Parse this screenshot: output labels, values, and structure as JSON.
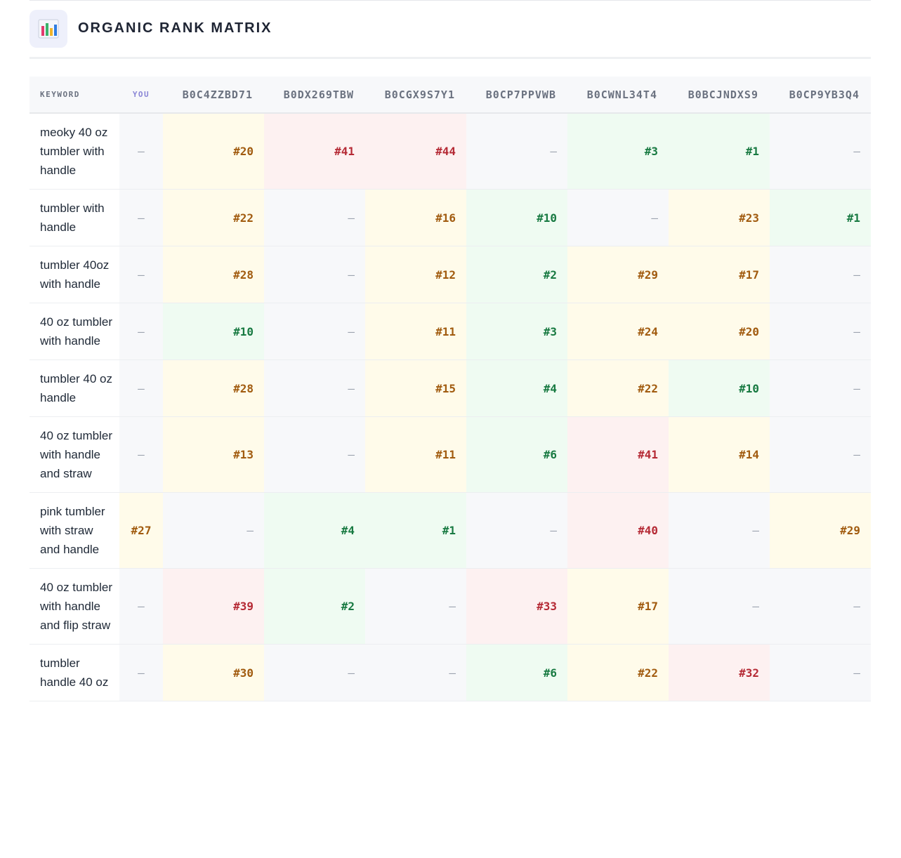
{
  "header": {
    "title": "ORGANIC RANK MATRIX",
    "icon": "bar-chart-icon"
  },
  "table": {
    "columns": {
      "keyword": "KEYWORD",
      "you": "YOU"
    },
    "asins": [
      "B0C4ZZBD71",
      "B0DX269TBW",
      "B0CGX9S7Y1",
      "B0CP7PPVWB",
      "B0CWNL34T4",
      "B0BCJNDXS9",
      "B0CP9YB3Q4"
    ],
    "rows": [
      {
        "keyword": "meoky 40 oz tumbler with handle",
        "you": "–",
        "ranks": [
          "#20",
          "#41",
          "#44",
          "–",
          "#3",
          "#1",
          "–"
        ]
      },
      {
        "keyword": "tumbler with handle",
        "you": "–",
        "ranks": [
          "#22",
          "–",
          "#16",
          "#10",
          "–",
          "#23",
          "#1"
        ]
      },
      {
        "keyword": "tumbler 40oz with handle",
        "you": "–",
        "ranks": [
          "#28",
          "–",
          "#12",
          "#2",
          "#29",
          "#17",
          "–"
        ]
      },
      {
        "keyword": "40 oz tumbler with handle",
        "you": "–",
        "ranks": [
          "#10",
          "–",
          "#11",
          "#3",
          "#24",
          "#20",
          "–"
        ]
      },
      {
        "keyword": "tumbler 40 oz handle",
        "you": "–",
        "ranks": [
          "#28",
          "–",
          "#15",
          "#4",
          "#22",
          "#10",
          "–"
        ]
      },
      {
        "keyword": "40 oz tumbler with handle and straw",
        "you": "–",
        "ranks": [
          "#13",
          "–",
          "#11",
          "#6",
          "#41",
          "#14",
          "–"
        ]
      },
      {
        "keyword": "pink tumbler with straw and handle",
        "you": "#27",
        "ranks": [
          "–",
          "#4",
          "#1",
          "–",
          "#40",
          "–",
          "#29"
        ]
      },
      {
        "keyword": "40 oz tumbler with handle and flip straw",
        "you": "–",
        "ranks": [
          "#39",
          "#2",
          "–",
          "#33",
          "#17",
          "–",
          "–"
        ]
      },
      {
        "keyword": "tumbler handle 40 oz",
        "you": "–",
        "ranks": [
          "#30",
          "–",
          "–",
          "#6",
          "#22",
          "#32",
          "–"
        ]
      }
    ],
    "tier_colors": {
      "top": {
        "bg": "#effbf2",
        "text": "#187a42"
      },
      "mid": {
        "bg": "#fffbea",
        "text": "#a15b0f"
      },
      "low": {
        "bg": "#fdf1f1",
        "text": "#b52a35"
      },
      "none": {
        "bg": "#f7f8fa",
        "text": "#9ca3af"
      }
    }
  }
}
